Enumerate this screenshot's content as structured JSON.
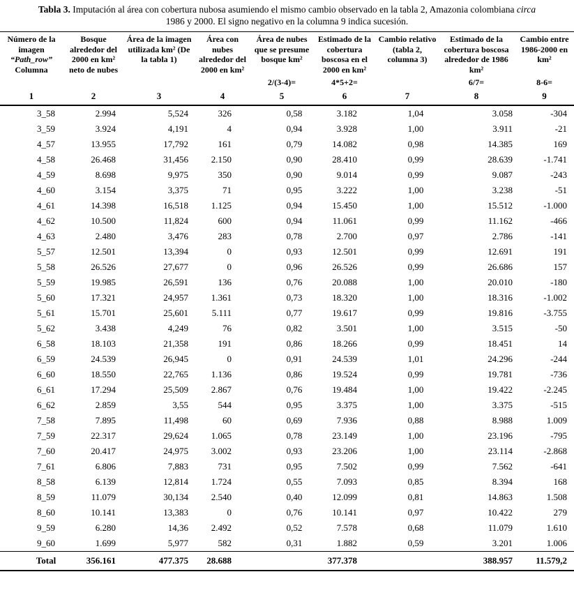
{
  "caption": {
    "label": "Tabla 3.",
    "line1": "Imputación al área con cobertura nubosa asumiendo el mismo cambio observado en la tabla 2, Amazonia colombiana",
    "italic": "circa",
    "line2": "1986 y 2000. El signo negativo en la columna 9 indica sucesión."
  },
  "table": {
    "headers": [
      {
        "top": "Número de la imagen",
        "pathrow": "“Path_row”",
        "bottom": "Columna"
      },
      "Bosque alrededor del 2000 en km² neto de nubes",
      "Área de la imagen utilizada km² (De la tabla 1)",
      "Área con nubes alrededor del 2000 en km²",
      "Área de nubes que se presume bosque km²",
      "Estimado de la cobertura boscosa en el 2000 en km²",
      "Cambio relativo (tabla 2, columna 3)",
      "Estimado de la cobertura boscosa alrededor de 1986 km²",
      "Cambio entre 1986-2000 en km²"
    ],
    "formulas": [
      "",
      "",
      "",
      "",
      "2/(3-4)=",
      "4*5+2=",
      "",
      "6/7=",
      "8-6="
    ],
    "col_numbers": [
      "1",
      "2",
      "3",
      "4",
      "5",
      "6",
      "7",
      "8",
      "9"
    ],
    "rows": [
      [
        "3_58",
        "2.994",
        "5,524",
        "326",
        "0,58",
        "3.182",
        "1,04",
        "3.058",
        "-304"
      ],
      [
        "3_59",
        "3.924",
        "4,191",
        "4",
        "0,94",
        "3.928",
        "1,00",
        "3.911",
        "-21"
      ],
      [
        "4_57",
        "13.955",
        "17,792",
        "161",
        "0,79",
        "14.082",
        "0,98",
        "14.385",
        "169"
      ],
      [
        "4_58",
        "26.468",
        "31,456",
        "2.150",
        "0,90",
        "28.410",
        "0,99",
        "28.639",
        "-1.741"
      ],
      [
        "4_59",
        "8.698",
        "9,975",
        "350",
        "0,90",
        "9.014",
        "0,99",
        "9.087",
        "-243"
      ],
      [
        "4_60",
        "3.154",
        "3,375",
        "71",
        "0,95",
        "3.222",
        "1,00",
        "3.238",
        "-51"
      ],
      [
        "4_61",
        "14.398",
        "16,518",
        "1.125",
        "0,94",
        "15.450",
        "1,00",
        "15.512",
        "-1.000"
      ],
      [
        "4_62",
        "10.500",
        "11,824",
        "600",
        "0,94",
        "11.061",
        "0,99",
        "11.162",
        "-466"
      ],
      [
        "4_63",
        "2.480",
        "3,476",
        "283",
        "0,78",
        "2.700",
        "0,97",
        "2.786",
        "-141"
      ],
      [
        "5_57",
        "12.501",
        "13,394",
        "0",
        "0,93",
        "12.501",
        "0,99",
        "12.691",
        "191"
      ],
      [
        "5_58",
        "26.526",
        "27,677",
        "0",
        "0,96",
        "26.526",
        "0,99",
        "26.686",
        "157"
      ],
      [
        "5_59",
        "19.985",
        "26,591",
        "136",
        "0,76",
        "20.088",
        "1,00",
        "20.010",
        "-180"
      ],
      [
        "5_60",
        "17.321",
        "24,957",
        "1.361",
        "0,73",
        "18.320",
        "1,00",
        "18.316",
        "-1.002"
      ],
      [
        "5_61",
        "15.701",
        "25,601",
        "5.111",
        "0,77",
        "19.617",
        "0,99",
        "19.816",
        "-3.755"
      ],
      [
        "5_62",
        "3.438",
        "4,249",
        "76",
        "0,82",
        "3.501",
        "1,00",
        "3.515",
        "-50"
      ],
      [
        "6_58",
        "18.103",
        "21,358",
        "191",
        "0,86",
        "18.266",
        "0,99",
        "18.451",
        "14"
      ],
      [
        "6_59",
        "24.539",
        "26,945",
        "0",
        "0,91",
        "24.539",
        "1,01",
        "24.296",
        "-244"
      ],
      [
        "6_60",
        "18.550",
        "22,765",
        "1.136",
        "0,86",
        "19.524",
        "0,99",
        "19.781",
        "-736"
      ],
      [
        "6_61",
        "17.294",
        "25,509",
        "2.867",
        "0,76",
        "19.484",
        "1,00",
        "19.422",
        "-2.245"
      ],
      [
        "6_62",
        "2.859",
        "3,55",
        "544",
        "0,95",
        "3.375",
        "1,00",
        "3.375",
        "-515"
      ],
      [
        "7_58",
        "7.895",
        "11,498",
        "60",
        "0,69",
        "7.936",
        "0,88",
        "8.988",
        "1.009"
      ],
      [
        "7_59",
        "22.317",
        "29,624",
        "1.065",
        "0,78",
        "23.149",
        "1,00",
        "23.196",
        "-795"
      ],
      [
        "7_60",
        "20.417",
        "24,975",
        "3.002",
        "0,93",
        "23.206",
        "1,00",
        "23.114",
        "-2.868"
      ],
      [
        "7_61",
        "6.806",
        "7,883",
        "731",
        "0,95",
        "7.502",
        "0,99",
        "7.562",
        "-641"
      ],
      [
        "8_58",
        "6.139",
        "12,814",
        "1.724",
        "0,55",
        "7.093",
        "0,85",
        "8.394",
        "168"
      ],
      [
        "8_59",
        "11.079",
        "30,134",
        "2.540",
        "0,40",
        "12.099",
        "0,81",
        "14.863",
        "1.508"
      ],
      [
        "8_60",
        "10.141",
        "13,383",
        "0",
        "0,76",
        "10.141",
        "0,97",
        "10.422",
        "279"
      ],
      [
        "9_59",
        "6.280",
        "14,36",
        "2.492",
        "0,52",
        "7.578",
        "0,68",
        "11.079",
        "1.610"
      ],
      [
        "9_60",
        "1.699",
        "5,977",
        "582",
        "0,31",
        "1.882",
        "0,59",
        "3.201",
        "1.006"
      ]
    ],
    "total": [
      "Total",
      "356.161",
      "477.375",
      "28.688",
      "",
      "377.378",
      "",
      "388.957",
      "11.579,2"
    ]
  }
}
